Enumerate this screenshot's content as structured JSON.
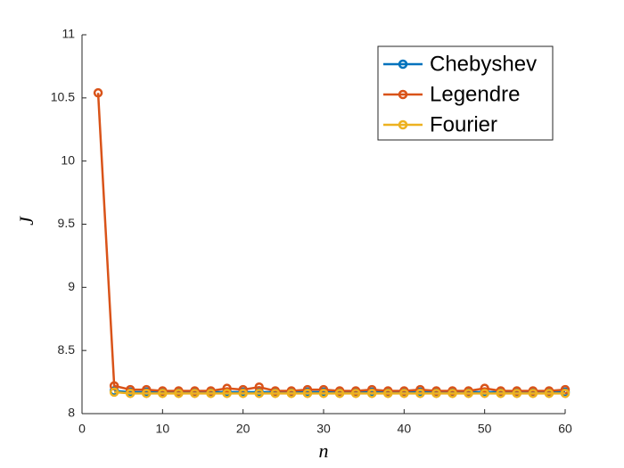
{
  "chart_data": {
    "type": "line",
    "xlabel": "n",
    "ylabel": "J",
    "x": [
      2,
      4,
      6,
      8,
      10,
      12,
      14,
      16,
      18,
      20,
      22,
      24,
      26,
      28,
      30,
      32,
      34,
      36,
      38,
      40,
      42,
      44,
      46,
      48,
      50,
      52,
      54,
      56,
      58,
      60
    ],
    "series": [
      {
        "name": "Chebyshev",
        "color": "#0072BD",
        "values": [
          null,
          8.18,
          8.17,
          8.17,
          8.17,
          8.17,
          8.17,
          8.17,
          8.17,
          8.17,
          8.17,
          8.17,
          8.17,
          8.17,
          8.17,
          8.17,
          8.17,
          8.17,
          8.17,
          8.17,
          8.17,
          8.17,
          8.17,
          8.17,
          8.17,
          8.17,
          8.17,
          8.17,
          8.17,
          8.17
        ]
      },
      {
        "name": "Legendre",
        "color": "#D95319",
        "values": [
          10.54,
          8.22,
          8.19,
          8.19,
          8.18,
          8.18,
          8.18,
          8.18,
          8.2,
          8.19,
          8.21,
          8.18,
          8.18,
          8.19,
          8.19,
          8.18,
          8.18,
          8.19,
          8.18,
          8.18,
          8.19,
          8.18,
          8.18,
          8.18,
          8.2,
          8.18,
          8.18,
          8.18,
          8.18,
          8.19
        ]
      },
      {
        "name": "Fourier",
        "color": "#EDB120",
        "values": [
          null,
          8.17,
          8.16,
          8.16,
          8.16,
          8.16,
          8.16,
          8.16,
          8.16,
          8.16,
          8.16,
          8.16,
          8.16,
          8.16,
          8.16,
          8.16,
          8.16,
          8.16,
          8.16,
          8.16,
          8.16,
          8.16,
          8.16,
          8.16,
          8.16,
          8.16,
          8.16,
          8.16,
          8.16,
          8.16
        ]
      }
    ],
    "xlim": [
      0,
      60
    ],
    "xticks": [
      0,
      10,
      20,
      30,
      40,
      50,
      60
    ],
    "ylim": [
      8,
      11
    ],
    "yticks": [
      8,
      8.5,
      9,
      9.5,
      10,
      10.5,
      11
    ],
    "grid": false,
    "legend": "northeast"
  }
}
